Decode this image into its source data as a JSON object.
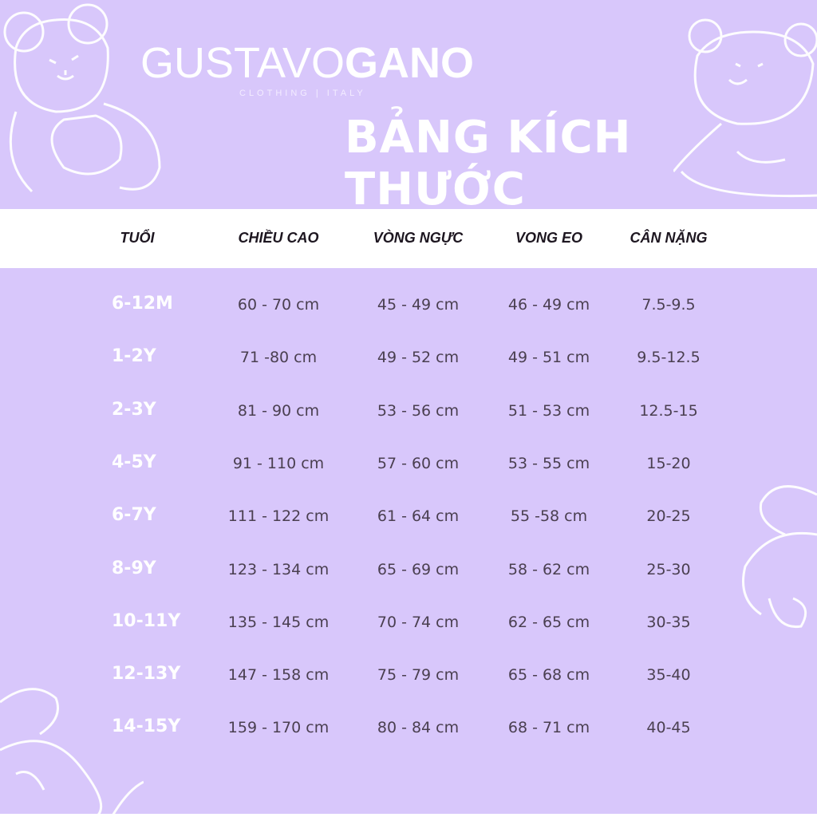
{
  "brand": {
    "name_light": "GUSTAVO",
    "name_bold": "GANO",
    "tagline": "CLOTHING | ITALY"
  },
  "title": "BẢNG KÍCH THƯỚC",
  "colors": {
    "background": "#d8c7fb",
    "header_band": "#ffffff",
    "text": "#4a3f50",
    "age_text": "#ffffff"
  },
  "table": {
    "headers": [
      "TUỔI",
      "CHIỀU CAO",
      "VÒNG NGỰC",
      "VONG EO",
      "CÂN NẶNG"
    ],
    "rows": [
      [
        "6-12M",
        "60 - 70 cm",
        "45 - 49 cm",
        "46 - 49 cm",
        "7.5-9.5"
      ],
      [
        "1-2Y",
        "71 -80 cm",
        "49 - 52 cm",
        "49 - 51 cm",
        "9.5-12.5"
      ],
      [
        "2-3Y",
        "81 - 90 cm",
        "53 - 56 cm",
        "51 - 53 cm",
        "12.5-15"
      ],
      [
        "4-5Y",
        "91 - 110 cm",
        "57 - 60 cm",
        "53 - 55 cm",
        "15-20"
      ],
      [
        "6-7Y",
        "111 - 122 cm",
        "61 - 64 cm",
        "55 -58 cm",
        "20-25"
      ],
      [
        "8-9Y",
        "123 - 134 cm",
        "65 - 69 cm",
        "58 - 62 cm",
        "25-30"
      ],
      [
        "10-11Y",
        "135 - 145 cm",
        "70 - 74 cm",
        "62 - 65 cm",
        "30-35"
      ],
      [
        "12-13Y",
        "147 - 158 cm",
        "75 - 79 cm",
        "65 - 68 cm",
        "35-40"
      ],
      [
        "14-15Y",
        "159 - 170 cm",
        "80 - 84 cm",
        "68 - 71 cm",
        "40-45"
      ]
    ]
  }
}
